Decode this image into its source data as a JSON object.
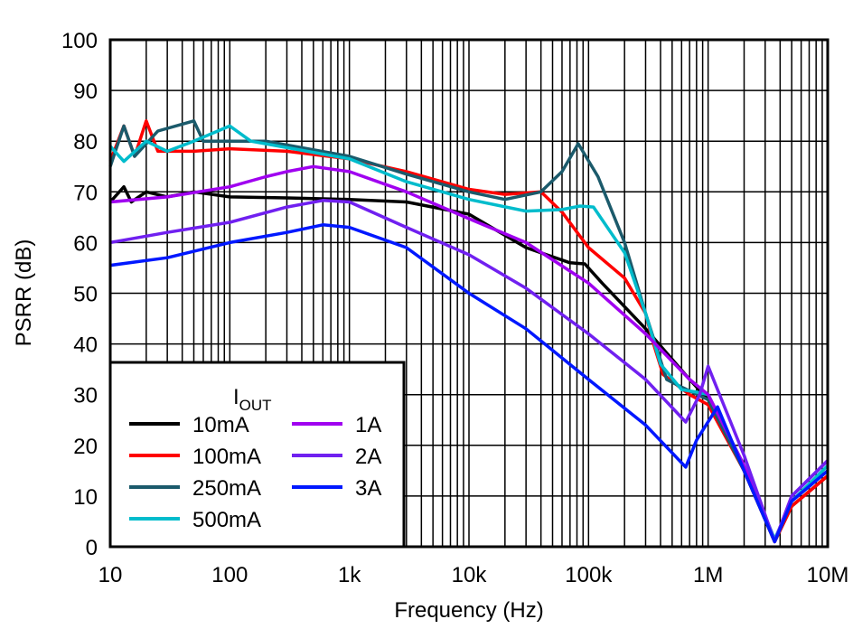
{
  "chart_data": {
    "type": "line",
    "xlabel": "Frequency (Hz)",
    "ylabel": "PSRR (dB)",
    "xscale": "log",
    "xlim": [
      10,
      10000000
    ],
    "ylim": [
      0,
      100
    ],
    "grid": true,
    "x_tick_labels": [
      "10",
      "100",
      "1k",
      "10k",
      "100k",
      "1M",
      "10M"
    ],
    "x_tick_values": [
      10,
      100,
      1000,
      10000,
      100000,
      1000000,
      10000000
    ],
    "y_tick_labels": [
      "0",
      "10",
      "20",
      "30",
      "40",
      "50",
      "60",
      "70",
      "80",
      "90",
      "100"
    ],
    "legend": {
      "title_main": "I",
      "title_sub": "OUT",
      "placement": "bottom-left"
    },
    "series": [
      {
        "name": "10mA",
        "color": "#000000",
        "points": [
          [
            10,
            68
          ],
          [
            13,
            71
          ],
          [
            15,
            68
          ],
          [
            20,
            70
          ],
          [
            30,
            69
          ],
          [
            50,
            70
          ],
          [
            100,
            69
          ],
          [
            300,
            68.8
          ],
          [
            1000,
            68.5
          ],
          [
            3000,
            68
          ],
          [
            10000,
            65.6
          ],
          [
            30000,
            59
          ],
          [
            70000,
            56
          ],
          [
            93000,
            55.8
          ],
          [
            130000,
            52
          ],
          [
            300000,
            43
          ],
          [
            700000,
            33
          ],
          [
            1000000,
            29
          ],
          [
            2000000,
            15
          ],
          [
            3600000,
            1
          ],
          [
            5000000,
            8
          ],
          [
            10000000,
            14
          ]
        ]
      },
      {
        "name": "100mA",
        "color": "#ff0000",
        "points": [
          [
            10,
            76
          ],
          [
            13,
            83
          ],
          [
            16,
            77
          ],
          [
            20,
            84
          ],
          [
            25,
            78
          ],
          [
            50,
            78
          ],
          [
            100,
            78.5
          ],
          [
            300,
            78
          ],
          [
            1000,
            76.5
          ],
          [
            3000,
            74
          ],
          [
            10000,
            70.5
          ],
          [
            20000,
            69.5
          ],
          [
            40000,
            70
          ],
          [
            60000,
            66
          ],
          [
            100000,
            59
          ],
          [
            200000,
            53
          ],
          [
            300000,
            46
          ],
          [
            350000,
            40
          ],
          [
            420000,
            34
          ],
          [
            700000,
            30
          ],
          [
            1000000,
            28
          ],
          [
            2000000,
            15
          ],
          [
            3600000,
            1
          ],
          [
            5000000,
            8
          ],
          [
            10000000,
            14
          ]
        ]
      },
      {
        "name": "250mA",
        "color": "#1b5a6b",
        "points": [
          [
            10,
            75
          ],
          [
            13,
            83
          ],
          [
            16,
            77
          ],
          [
            25,
            82
          ],
          [
            50,
            84
          ],
          [
            60,
            80
          ],
          [
            100,
            80
          ],
          [
            200,
            80
          ],
          [
            1000,
            77
          ],
          [
            3000,
            73.5
          ],
          [
            10000,
            70
          ],
          [
            20000,
            68.5
          ],
          [
            40000,
            70
          ],
          [
            60000,
            74
          ],
          [
            82000,
            79.5
          ],
          [
            120000,
            73
          ],
          [
            200000,
            60
          ],
          [
            300000,
            46
          ],
          [
            450000,
            33
          ],
          [
            600000,
            31.5
          ],
          [
            1000000,
            29
          ],
          [
            2000000,
            15
          ],
          [
            3600000,
            1
          ],
          [
            5000000,
            9
          ],
          [
            10000000,
            15
          ]
        ]
      },
      {
        "name": "500mA",
        "color": "#00bccc",
        "points": [
          [
            10,
            79
          ],
          [
            13,
            76
          ],
          [
            20,
            80
          ],
          [
            30,
            78
          ],
          [
            50,
            80
          ],
          [
            100,
            83
          ],
          [
            150,
            80
          ],
          [
            1000,
            76.5
          ],
          [
            3000,
            72
          ],
          [
            10000,
            68.5
          ],
          [
            30000,
            66.2
          ],
          [
            60000,
            66.5
          ],
          [
            85000,
            67.2
          ],
          [
            110000,
            67
          ],
          [
            200000,
            58
          ],
          [
            300000,
            46
          ],
          [
            400000,
            36
          ],
          [
            600000,
            31
          ],
          [
            800000,
            30.5
          ],
          [
            1000000,
            30
          ],
          [
            2000000,
            16
          ],
          [
            3600000,
            1.5
          ],
          [
            5000000,
            9
          ],
          [
            10000000,
            16
          ]
        ]
      },
      {
        "name": "1A",
        "color": "#a000f0",
        "points": [
          [
            10,
            68
          ],
          [
            30,
            69
          ],
          [
            100,
            71
          ],
          [
            200,
            73
          ],
          [
            300,
            74
          ],
          [
            500,
            75
          ],
          [
            1000,
            74
          ],
          [
            3000,
            70
          ],
          [
            10000,
            64.7
          ],
          [
            30000,
            60
          ],
          [
            100000,
            52
          ],
          [
            300000,
            42
          ],
          [
            700000,
            33
          ],
          [
            1000000,
            30
          ],
          [
            2000000,
            16
          ],
          [
            3600000,
            1
          ],
          [
            5000000,
            10
          ],
          [
            10000000,
            17
          ]
        ]
      },
      {
        "name": "2A",
        "color": "#7020f0",
        "points": [
          [
            10,
            60
          ],
          [
            30,
            62
          ],
          [
            100,
            64
          ],
          [
            300,
            67
          ],
          [
            600,
            68.3
          ],
          [
            1000,
            68
          ],
          [
            3000,
            63
          ],
          [
            10000,
            57.6
          ],
          [
            30000,
            51
          ],
          [
            100000,
            42
          ],
          [
            300000,
            33
          ],
          [
            650000,
            24.6
          ],
          [
            850000,
            30
          ],
          [
            1000000,
            35.6
          ],
          [
            1200000,
            31
          ],
          [
            2000000,
            18
          ],
          [
            3600000,
            1
          ],
          [
            5000000,
            10
          ],
          [
            10000000,
            17
          ]
        ]
      },
      {
        "name": "3A",
        "color": "#0018ff",
        "points": [
          [
            10,
            55.5
          ],
          [
            30,
            57
          ],
          [
            100,
            60
          ],
          [
            300,
            62
          ],
          [
            600,
            63.5
          ],
          [
            1000,
            63
          ],
          [
            3000,
            59
          ],
          [
            10000,
            50
          ],
          [
            30000,
            43
          ],
          [
            100000,
            33
          ],
          [
            300000,
            24
          ],
          [
            650000,
            15.7
          ],
          [
            800000,
            21
          ],
          [
            1200000,
            27.6
          ],
          [
            2000000,
            15
          ],
          [
            3600000,
            1
          ],
          [
            5000000,
            9
          ],
          [
            10000000,
            15
          ]
        ]
      }
    ]
  }
}
